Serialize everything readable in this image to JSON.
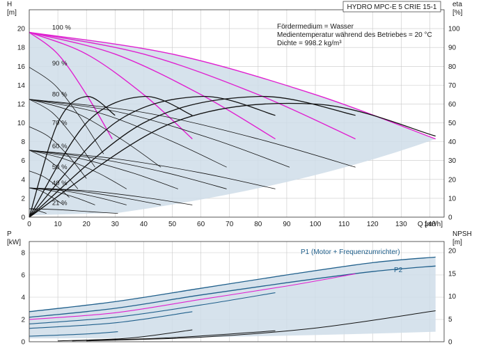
{
  "chart_data": [
    {
      "type": "line",
      "title": "HYDRO MPC-E 5 CRIE 15-1",
      "xlabel": "Q [m³/h]",
      "ylabel_left": "H",
      "ylabel_left_unit": "[m]",
      "ylabel_right": "eta",
      "ylabel_right_unit": "[%]",
      "xlim": [
        0,
        145
      ],
      "ylim_left": [
        0,
        22
      ],
      "ylim_right": [
        0,
        110
      ],
      "x_ticks": [
        "0",
        "10",
        "20",
        "30",
        "40",
        "50",
        "60",
        "70",
        "80",
        "90",
        "100",
        "110",
        "120",
        "130",
        "140"
      ],
      "y_left_ticks": [
        "0",
        "2",
        "4",
        "6",
        "8",
        "10",
        "12",
        "14",
        "16",
        "18",
        "20"
      ],
      "y_right_ticks": [
        "0",
        "10",
        "20",
        "30",
        "40",
        "50",
        "60",
        "70",
        "80",
        "90",
        "100"
      ],
      "grid": true,
      "annotations": [
        "Fördermedium = Wasser",
        "Medientemperatur während des Betriebes = 20 °C",
        "Dichte = 998.2 kg/m³"
      ],
      "speed_labels": [
        {
          "label": "100 %",
          "q": 8,
          "h": 19.9
        },
        {
          "label": "90 %",
          "q": 8,
          "h": 16.1
        },
        {
          "label": "80 %",
          "q": 8,
          "h": 12.8
        },
        {
          "label": "70 %",
          "q": 8,
          "h": 9.8
        },
        {
          "label": "60 %",
          "q": 8,
          "h": 7.3
        },
        {
          "label": "50 %",
          "q": 8,
          "h": 5.1
        },
        {
          "label": "40 %",
          "q": 8,
          "h": 3.4
        },
        {
          "label": "21 %",
          "q": 8,
          "h": 1.3
        }
      ],
      "series": [
        {
          "pumps": 1,
          "curves": [
            {
              "speed": 1.0,
              "x": [
                0,
                10,
                20,
                29
              ],
              "y": [
                19.6,
                17.3,
                13.0,
                8.3
              ]
            },
            {
              "speed": 0.9,
              "x": [
                0,
                9,
                18,
                26
              ],
              "y": [
                15.9,
                14.0,
                10.5,
                6.7
              ]
            },
            {
              "speed": 0.8,
              "x": [
                0,
                8,
                16,
                23
              ],
              "y": [
                12.5,
                11.1,
                8.3,
                5.3
              ]
            },
            {
              "speed": 0.7,
              "x": [
                0,
                7,
                14,
                20
              ],
              "y": [
                9.6,
                8.5,
                6.4,
                4.1
              ]
            },
            {
              "speed": 0.6,
              "x": [
                0,
                6,
                12,
                17
              ],
              "y": [
                7.1,
                6.2,
                4.7,
                3.0
              ]
            },
            {
              "speed": 0.5,
              "x": [
                0,
                5,
                10,
                14
              ],
              "y": [
                4.9,
                4.3,
                3.2,
                2.1
              ]
            },
            {
              "speed": 0.4,
              "x": [
                0,
                4,
                8,
                12
              ],
              "y": [
                3.1,
                2.8,
                2.1,
                1.3
              ]
            },
            {
              "speed": 0.21,
              "x": [
                0,
                2,
                4,
                6
              ],
              "y": [
                0.9,
                0.8,
                0.6,
                0.4
              ]
            }
          ]
        },
        {
          "pumps": 2,
          "curves": [
            {
              "speed": 1.0,
              "x": [
                0,
                20,
                40,
                57
              ],
              "y": [
                19.6,
                17.3,
                13.0,
                8.3
              ]
            },
            {
              "speed": 0.8,
              "x": [
                0,
                16,
                32,
                46
              ],
              "y": [
                12.5,
                11.1,
                8.3,
                5.3
              ]
            },
            {
              "speed": 0.6,
              "x": [
                0,
                12,
                24,
                34
              ],
              "y": [
                7.1,
                6.2,
                4.7,
                3.0
              ]
            },
            {
              "speed": 0.4,
              "x": [
                0,
                8,
                16,
                23
              ],
              "y": [
                3.1,
                2.8,
                2.1,
                1.3
              ]
            }
          ]
        },
        {
          "pumps": 3,
          "curves": [
            {
              "speed": 1.0,
              "x": [
                0,
                30,
                60,
                86
              ],
              "y": [
                19.6,
                17.3,
                13.0,
                8.3
              ]
            },
            {
              "speed": 0.8,
              "x": [
                0,
                24,
                48,
                69
              ],
              "y": [
                12.5,
                11.1,
                8.3,
                5.3
              ]
            },
            {
              "speed": 0.6,
              "x": [
                0,
                18,
                36,
                52
              ],
              "y": [
                7.1,
                6.2,
                4.7,
                3.0
              ]
            },
            {
              "speed": 0.4,
              "x": [
                0,
                12,
                24,
                34
              ],
              "y": [
                3.1,
                2.8,
                2.1,
                1.3
              ]
            }
          ]
        },
        {
          "pumps": 4,
          "curves": [
            {
              "speed": 1.0,
              "x": [
                0,
                40,
                80,
                114
              ],
              "y": [
                19.6,
                17.3,
                13.0,
                8.3
              ]
            },
            {
              "speed": 0.8,
              "x": [
                0,
                32,
                64,
                91
              ],
              "y": [
                12.5,
                11.1,
                8.3,
                5.3
              ]
            },
            {
              "speed": 0.6,
              "x": [
                0,
                24,
                48,
                69
              ],
              "y": [
                7.1,
                6.2,
                4.7,
                3.0
              ]
            },
            {
              "speed": 0.4,
              "x": [
                0,
                16,
                32,
                46
              ],
              "y": [
                3.1,
                2.8,
                2.1,
                1.3
              ]
            }
          ]
        },
        {
          "pumps": 5,
          "curves": [
            {
              "speed": 1.0,
              "x": [
                0,
                50,
                100,
                142
              ],
              "y": [
                19.6,
                17.3,
                13.0,
                8.3
              ]
            },
            {
              "speed": 0.8,
              "x": [
                0,
                40,
                80,
                114
              ],
              "y": [
                12.5,
                11.1,
                8.3,
                5.3
              ]
            },
            {
              "speed": 0.6,
              "x": [
                0,
                30,
                60,
                86
              ],
              "y": [
                7.1,
                6.2,
                4.7,
                3.0
              ]
            },
            {
              "speed": 0.4,
              "x": [
                0,
                20,
                40,
                57
              ],
              "y": [
                3.1,
                2.8,
                2.1,
                1.3
              ]
            },
            {
              "speed": 0.21,
              "x": [
                0,
                10,
                20,
                31
              ],
              "y": [
                0.9,
                0.8,
                0.6,
                0.4
              ]
            }
          ]
        }
      ],
      "efficiency": [
        {
          "x": [
            0,
            10,
            20,
            30
          ],
          "y": [
            0,
            50,
            64,
            54
          ]
        },
        {
          "x": [
            0,
            20,
            40,
            57
          ],
          "y": [
            0,
            50,
            64,
            54
          ]
        },
        {
          "x": [
            0,
            30,
            60,
            86
          ],
          "y": [
            0,
            50,
            64,
            54
          ]
        },
        {
          "x": [
            0,
            40,
            80,
            114
          ],
          "y": [
            0,
            50,
            64,
            54
          ]
        },
        {
          "x": [
            0,
            50,
            100,
            142
          ],
          "y": [
            0,
            50,
            60,
            43
          ]
        }
      ],
      "colors": {
        "curve": "#111111",
        "highlight": "#e020d0",
        "envelope": "#cfdde9",
        "grid": "#c8c8c8"
      }
    },
    {
      "type": "line",
      "xlim": [
        0,
        145
      ],
      "ylabel_left": "P",
      "ylabel_left_unit": "[kW]",
      "ylabel_right": "NPSH",
      "ylabel_right_unit": "[m]",
      "ylim_left": [
        0,
        9
      ],
      "ylim_right": [
        0,
        22
      ],
      "y_left_ticks": [
        "0",
        "2",
        "4",
        "6",
        "8"
      ],
      "y_right_ticks": [
        "0",
        "5",
        "10",
        "15",
        "20"
      ],
      "grid": true,
      "series": [
        {
          "name": "P1 (Motor + Frequenzumrichter)",
          "x": [
            0,
            30,
            60,
            90,
            120,
            142
          ],
          "y": [
            2.7,
            3.6,
            4.8,
            6.0,
            7.1,
            7.6
          ]
        },
        {
          "name": "P2",
          "x": [
            0,
            30,
            60,
            90,
            120,
            142
          ],
          "y": [
            2.2,
            3.0,
            4.2,
            5.3,
            6.3,
            6.8
          ]
        }
      ],
      "power_curves": [
        {
          "x": [
            0,
            30,
            60,
            90,
            114
          ],
          "y": [
            2.0,
            2.6,
            3.8,
            5.0,
            6.1
          ]
        },
        {
          "x": [
            0,
            30,
            60,
            86
          ],
          "y": [
            1.6,
            2.2,
            3.3,
            4.4
          ]
        },
        {
          "x": [
            0,
            30,
            57
          ],
          "y": [
            1.2,
            1.7,
            2.7
          ]
        },
        {
          "x": [
            0,
            20,
            31
          ],
          "y": [
            0.5,
            0.7,
            0.9
          ]
        }
      ],
      "npsh": [
        {
          "x": [
            20,
            60,
            100,
            142
          ],
          "y": [
            0.2,
            1.0,
            3.0,
            6.8
          ]
        },
        {
          "x": [
            15,
            50,
            86
          ],
          "y": [
            0.2,
            0.9,
            2.4
          ]
        },
        {
          "x": [
            10,
            35,
            57
          ],
          "y": [
            0.2,
            0.8,
            2.6
          ]
        }
      ]
    }
  ]
}
